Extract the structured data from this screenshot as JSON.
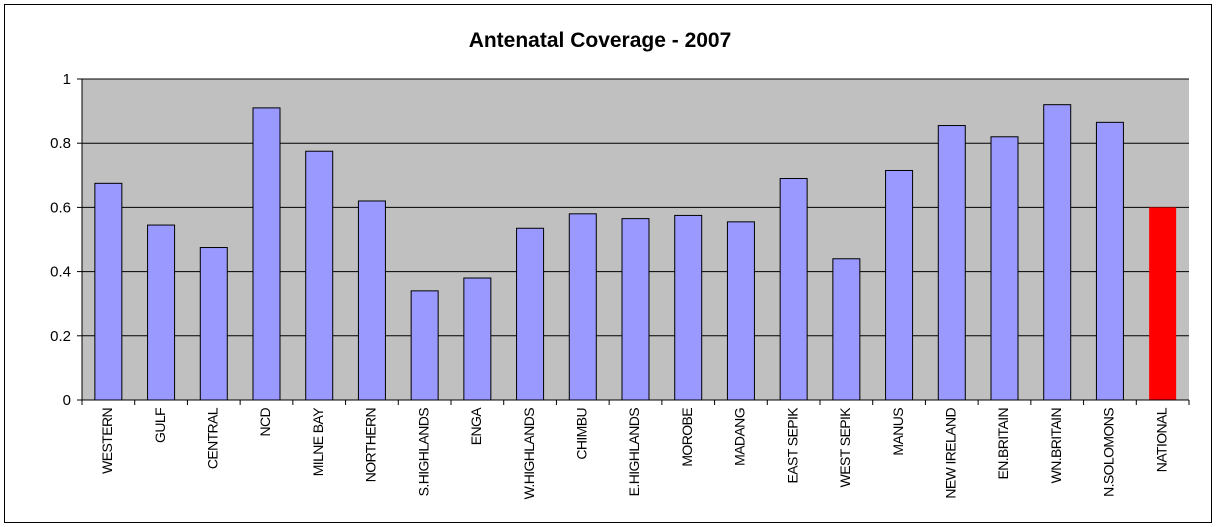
{
  "chart_data": {
    "type": "bar",
    "title": "Antenatal Coverage - 2007",
    "xlabel": "",
    "ylabel": "",
    "ylim": [
      0,
      1
    ],
    "yticks": [
      "0",
      "0.2",
      "0.4",
      "0.6",
      "0.8",
      "1"
    ],
    "grid": true,
    "legend": "none",
    "categories": [
      "WESTERN",
      "GULF",
      "CENTRAL",
      "NCD",
      "MILNE BAY",
      "NORTHERN",
      "S.HIGHLANDS",
      "ENGA",
      "W.HIGHLANDS",
      "CHIMBU",
      "E.HIGHLANDS",
      "MOROBE",
      "MADANG",
      "EAST SEPIK",
      "WEST SEPIK",
      "MANUS",
      "NEW IRELAND",
      "EN.BRITAIN",
      "WN.BRITAIN",
      "N.SOLOMONS",
      "NATIONAL"
    ],
    "values": [
      0.675,
      0.545,
      0.475,
      0.91,
      0.775,
      0.62,
      0.34,
      0.38,
      0.535,
      0.58,
      0.565,
      0.575,
      0.555,
      0.69,
      0.44,
      0.715,
      0.855,
      0.82,
      0.92,
      0.865,
      0.6
    ],
    "colors": {
      "bar": "#9999ff",
      "highlight": "#ff0000",
      "plot_background": "#c0c0c0",
      "gridline": "#000000"
    },
    "highlight_category": "NATIONAL"
  }
}
